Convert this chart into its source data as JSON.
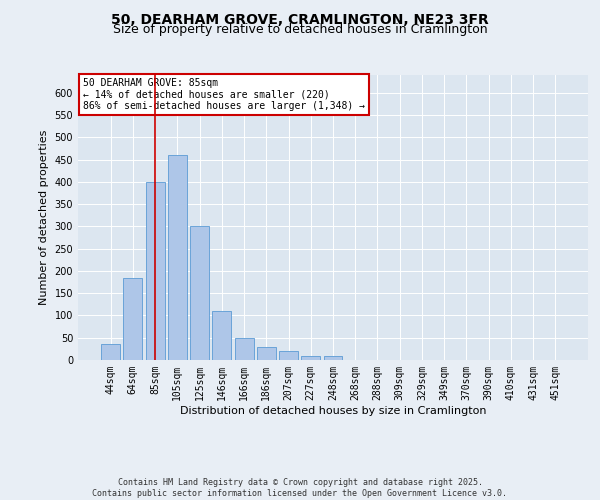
{
  "title": "50, DEARHAM GROVE, CRAMLINGTON, NE23 3FR",
  "subtitle": "Size of property relative to detached houses in Cramlington",
  "xlabel": "Distribution of detached houses by size in Cramlington",
  "ylabel": "Number of detached properties",
  "footer_line1": "Contains HM Land Registry data © Crown copyright and database right 2025.",
  "footer_line2": "Contains public sector information licensed under the Open Government Licence v3.0.",
  "annotation_line1": "50 DEARHAM GROVE: 85sqm",
  "annotation_line2": "← 14% of detached houses are smaller (220)",
  "annotation_line3": "86% of semi-detached houses are larger (1,348) →",
  "bar_color": "#aec6e8",
  "bar_edge_color": "#5b9bd5",
  "categories": [
    "44sqm",
    "64sqm",
    "85sqm",
    "105sqm",
    "125sqm",
    "146sqm",
    "166sqm",
    "186sqm",
    "207sqm",
    "227sqm",
    "248sqm",
    "268sqm",
    "288sqm",
    "309sqm",
    "329sqm",
    "349sqm",
    "370sqm",
    "390sqm",
    "410sqm",
    "431sqm",
    "451sqm"
  ],
  "values": [
    35,
    185,
    400,
    460,
    300,
    110,
    50,
    30,
    20,
    10,
    8,
    1,
    0,
    0,
    0,
    0,
    0,
    0,
    0,
    0,
    1
  ],
  "ylim": [
    0,
    640
  ],
  "yticks": [
    0,
    50,
    100,
    150,
    200,
    250,
    300,
    350,
    400,
    450,
    500,
    550,
    600
  ],
  "background_color": "#e8eef5",
  "plot_bg_color": "#dce6f0",
  "grid_color": "#ffffff",
  "annotation_box_color": "#ffffff",
  "annotation_box_edge": "#cc0000",
  "redline_color": "#cc0000",
  "title_fontsize": 10,
  "subtitle_fontsize": 9,
  "axis_label_fontsize": 8,
  "tick_fontsize": 7,
  "annotation_fontsize": 7,
  "footer_fontsize": 6
}
